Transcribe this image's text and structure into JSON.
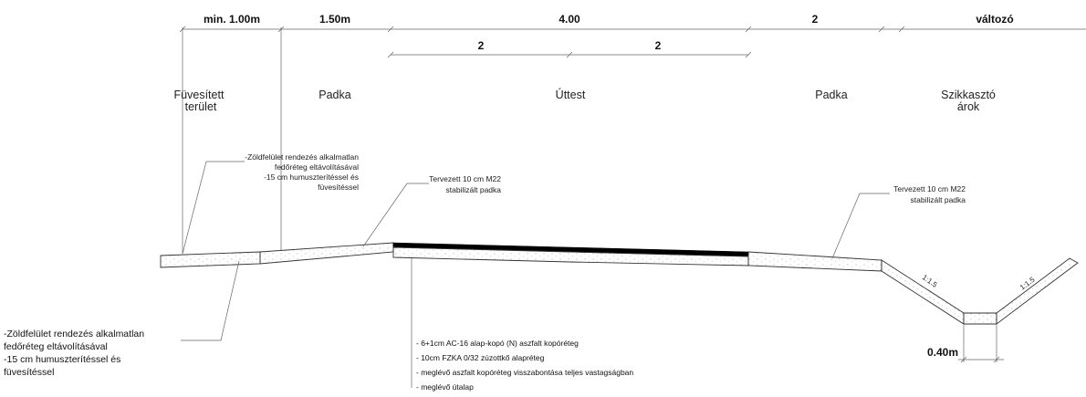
{
  "dimensions": {
    "top": [
      "min. 1.00m",
      "1.50m",
      "4.00",
      "2",
      "változó"
    ],
    "sub": [
      "2",
      "2"
    ],
    "ditch_bottom": "0.40m"
  },
  "zones": {
    "fuvesitett": [
      "Füvesített",
      "terület"
    ],
    "padka_left": "Padka",
    "uttest": "Úttest",
    "padka_right": "Padka",
    "szikkaszto": [
      "Szikkasztó",
      "árok"
    ]
  },
  "notes": {
    "zoldfelulet_top": [
      "-Zöldfelület rendezés alkalmatlan",
      "fedőréteg eltávolításával",
      "-15 cm humuszterítéssel és",
      "füvesítéssel"
    ],
    "padka_left_note": [
      "Tervezett 10 cm M22",
      "stabilizált padka"
    ],
    "padka_right_note": [
      "Tervezett 10 cm M22",
      "stabilizált padka"
    ],
    "zoldfelulet_bottom": [
      "-Zöldfelület rendezés alkalmatlan",
      "fedőréteg eltávolításával",
      "-15 cm humuszterítéssel és",
      "füvesítéssel"
    ]
  },
  "layers": [
    "- 6+1cm AC-16 alap-kopó (N) aszfalt kopóréteg",
    "- 10cm FZKA 0/32 zúzottkő alapréteg",
    "- meglévő aszfalt kopóréteg visszabontása teljes vastagságban",
    "- meglévő útalap"
  ],
  "slopes": [
    "1:1.5",
    "1:1.5"
  ]
}
